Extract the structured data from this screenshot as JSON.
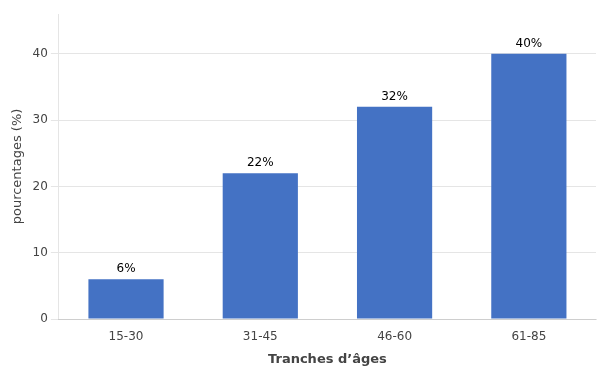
{
  "chart_data": {
    "type": "bar",
    "categories": [
      "15-30",
      "31-45",
      "46-60",
      "61-85"
    ],
    "values": [
      6,
      22,
      32,
      40
    ],
    "value_labels": [
      "6%",
      "22%",
      "32%",
      "40%"
    ],
    "data_labels": true,
    "color": "#4472C4",
    "xlabel": "Tranches d’âges",
    "ylabel": "pourcentages (%)",
    "ylim": [
      0,
      46
    ],
    "yticks": [
      0,
      10,
      20,
      30,
      40
    ],
    "grid": true
  }
}
